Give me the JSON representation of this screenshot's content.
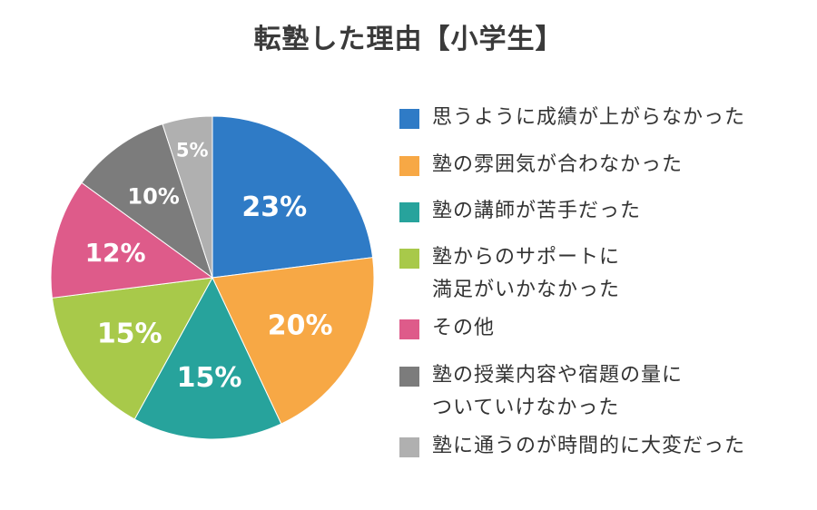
{
  "chart_data": {
    "type": "pie",
    "title": "転塾した理由【小学生】",
    "categories": [
      "思うように成績が上がらなかった",
      "塾の雰囲気が合わなかった",
      "塾の講師が苦手だった",
      "塾からのサポートに\n満足がいかなかった",
      "その他",
      "塾の授業内容や宿題の量に\nついていけなかった",
      "塾に通うのが時間的に大変だった"
    ],
    "values": [
      23,
      20,
      15,
      15,
      12,
      10,
      5
    ],
    "value_labels": [
      "23%",
      "20%",
      "15%",
      "15%",
      "12%",
      "10%",
      "5%"
    ],
    "colors": [
      "#2f7bc6",
      "#f7a845",
      "#27a39c",
      "#a8c94a",
      "#de5b8a",
      "#7c7c7c",
      "#b0b0b0"
    ],
    "start_angle_deg": 0,
    "direction": "clockwise",
    "legend_position": "right"
  }
}
